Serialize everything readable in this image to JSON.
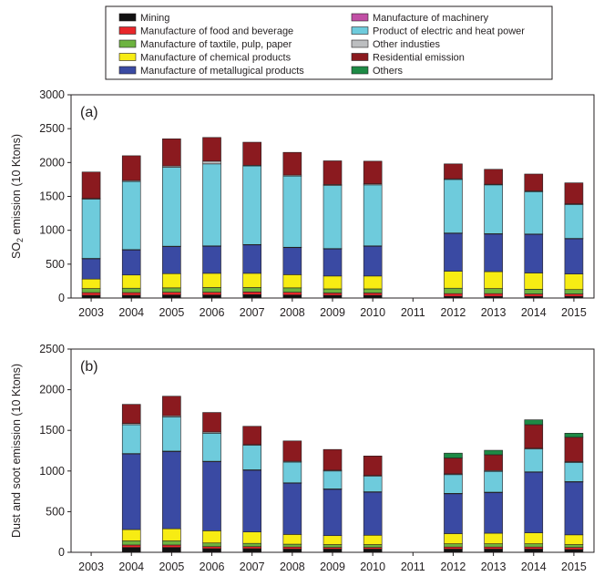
{
  "legend": [
    {
      "label": "Mining",
      "color": "#111111"
    },
    {
      "label": "Manufacture of food and beverage",
      "color": "#e8262a"
    },
    {
      "label": "Manufacture of taxtile, pulp, paper",
      "color": "#6db33f"
    },
    {
      "label": "Manufacture of chemical products",
      "color": "#f7ec13"
    },
    {
      "label": "Manufacture of metallugical products",
      "color": "#3a4aa3"
    },
    {
      "label": "Manufacture of machinery",
      "color": "#c14fa5"
    },
    {
      "label": "Product of electric and heat power",
      "color": "#6ecbdc"
    },
    {
      "label": "Other industies",
      "color": "#bcbec0"
    },
    {
      "label": "Residential emission",
      "color": "#8b1a1f"
    },
    {
      "label": "Others",
      "color": "#1d8a45"
    }
  ],
  "chart_data": [
    {
      "type": "bar",
      "stacked": true,
      "panel_label": "(a)",
      "ylabel_prefix": "SO",
      "ylabel_sub": "2",
      "ylabel_suffix": " emission (10 Ktons)",
      "ylim": [
        0,
        3000
      ],
      "yticks": [
        "0",
        "500",
        "1000",
        "1500",
        "2000",
        "2500",
        "3000"
      ],
      "categories": [
        "2003",
        "2004",
        "2005",
        "2006",
        "2007",
        "2008",
        "2009",
        "2010",
        "2011",
        "2012",
        "2013",
        "2014",
        "2015"
      ],
      "series": [
        {
          "name": "Mining",
          "values": [
            40,
            40,
            45,
            45,
            50,
            45,
            40,
            40,
            null,
            25,
            25,
            25,
            25
          ]
        },
        {
          "name": "Manufacture of food and beverage",
          "values": [
            40,
            40,
            40,
            40,
            40,
            40,
            35,
            35,
            null,
            40,
            40,
            35,
            35
          ]
        },
        {
          "name": "Manufacture of taxtile, pulp, paper",
          "values": [
            60,
            65,
            65,
            70,
            65,
            65,
            60,
            60,
            null,
            80,
            75,
            70,
            65
          ]
        },
        {
          "name": "Manufacture of chemical products",
          "values": [
            140,
            195,
            210,
            210,
            210,
            195,
            190,
            190,
            null,
            250,
            250,
            240,
            230
          ]
        },
        {
          "name": "Manufacture of metallugical products",
          "values": [
            300,
            370,
            400,
            400,
            420,
            400,
            400,
            440,
            null,
            560,
            555,
            570,
            520
          ]
        },
        {
          "name": "Manufacture of machinery",
          "values": [
            5,
            5,
            5,
            5,
            5,
            5,
            5,
            5,
            null,
            5,
            5,
            5,
            5
          ]
        },
        {
          "name": "Product of electric and heat power",
          "values": [
            875,
            1005,
            1165,
            1210,
            1160,
            1050,
            930,
            900,
            null,
            790,
            720,
            625,
            500
          ]
        },
        {
          "name": "Other industies",
          "values": [
            10,
            15,
            20,
            40,
            10,
            15,
            15,
            15,
            null,
            10,
            10,
            10,
            10
          ]
        },
        {
          "name": "Residential emission",
          "values": [
            390,
            365,
            400,
            350,
            340,
            335,
            350,
            335,
            null,
            220,
            220,
            250,
            310
          ]
        },
        {
          "name": "Others",
          "values": [
            0,
            0,
            0,
            0,
            0,
            0,
            0,
            0,
            null,
            0,
            0,
            0,
            0
          ]
        }
      ]
    },
    {
      "type": "bar",
      "stacked": true,
      "panel_label": "(b)",
      "ylabel_prefix": "Dust and soot emission (10 Ktons)",
      "ylabel_sub": "",
      "ylabel_suffix": "",
      "ylim": [
        0,
        2500
      ],
      "yticks": [
        "0",
        "500",
        "1000",
        "1500",
        "2000",
        "2500"
      ],
      "categories": [
        "2003",
        "2004",
        "2005",
        "2006",
        "2007",
        "2008",
        "2009",
        "2010",
        "2011",
        "2012",
        "2013",
        "2014",
        "2015"
      ],
      "series": [
        {
          "name": "Mining",
          "values": [
            null,
            60,
            60,
            45,
            45,
            40,
            40,
            40,
            null,
            40,
            40,
            40,
            35
          ]
        },
        {
          "name": "Manufacture of food and beverage",
          "values": [
            null,
            30,
            30,
            25,
            25,
            25,
            20,
            20,
            null,
            25,
            25,
            25,
            25
          ]
        },
        {
          "name": "Manufacture of taxtile, pulp, paper",
          "values": [
            null,
            50,
            50,
            45,
            40,
            35,
            35,
            35,
            null,
            40,
            40,
            40,
            35
          ]
        },
        {
          "name": "Manufacture of chemical products",
          "values": [
            null,
            140,
            150,
            150,
            140,
            120,
            110,
            115,
            null,
            125,
            130,
            135,
            120
          ]
        },
        {
          "name": "Manufacture of metallugical products",
          "values": [
            null,
            930,
            950,
            850,
            760,
            630,
            570,
            530,
            null,
            490,
            500,
            745,
            650
          ]
        },
        {
          "name": "Manufacture of machinery",
          "values": [
            null,
            5,
            5,
            5,
            5,
            5,
            5,
            5,
            null,
            5,
            5,
            5,
            5
          ]
        },
        {
          "name": "Product of electric and heat power",
          "values": [
            null,
            355,
            420,
            345,
            300,
            255,
            220,
            190,
            null,
            230,
            255,
            280,
            235
          ]
        },
        {
          "name": "Other industies",
          "values": [
            null,
            15,
            15,
            15,
            10,
            10,
            10,
            10,
            null,
            10,
            10,
            10,
            10
          ]
        },
        {
          "name": "Residential emission",
          "values": [
            null,
            235,
            240,
            240,
            225,
            250,
            255,
            240,
            null,
            195,
            195,
            290,
            300
          ]
        },
        {
          "name": "Others",
          "values": [
            null,
            0,
            0,
            0,
            0,
            0,
            0,
            0,
            null,
            60,
            55,
            60,
            50
          ]
        }
      ]
    }
  ]
}
